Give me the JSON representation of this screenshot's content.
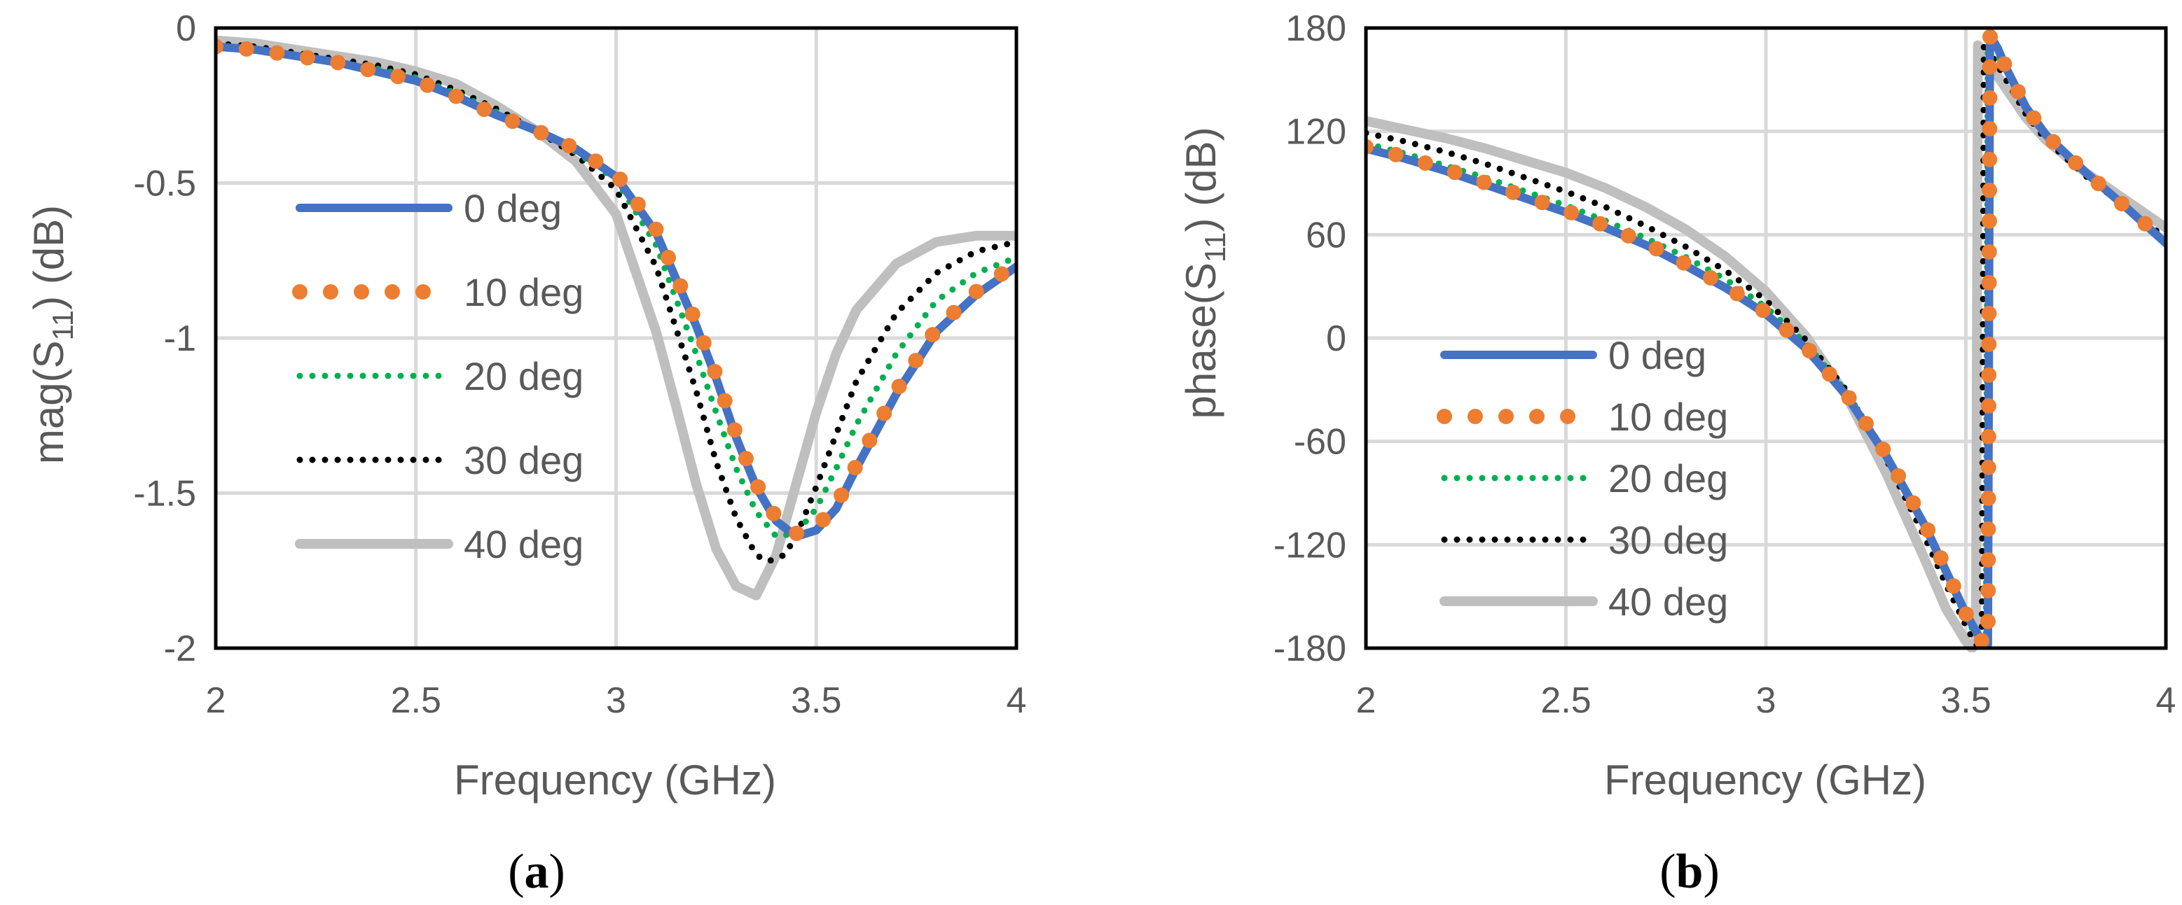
{
  "colors": {
    "s0": "#4472C4",
    "s1": "#ED7D31",
    "s2": "#00B050",
    "s3": "#000000",
    "s4": "#BFBFBF",
    "grid": "#D9D9D9",
    "frame": "#000000"
  },
  "chart_data": [
    {
      "type": "line",
      "panel": "a",
      "caption_open": "(",
      "caption_letter": "a",
      "caption_close": ")",
      "xlabel": "Frequency (GHz)",
      "ylabel_prefix": "mag(S",
      "ylabel_sub": "11",
      "ylabel_suffix": ") (dB)",
      "xlim": [
        2,
        4
      ],
      "ylim": [
        -2,
        0
      ],
      "xticks": [
        2,
        2.5,
        3,
        3.5,
        4
      ],
      "xtick_labels": [
        "2",
        "2.5",
        "3",
        "3.5",
        "4"
      ],
      "yticks": [
        0,
        -0.5,
        -1,
        -1.5,
        -2
      ],
      "ytick_labels": [
        "0",
        "-0.5",
        "-1",
        "-1.5",
        "-2"
      ],
      "legend": "center-left",
      "grid": true,
      "series": [
        {
          "name": "0 deg",
          "style": "solid",
          "x": [
            2.0,
            2.1,
            2.2,
            2.3,
            2.4,
            2.5,
            2.6,
            2.7,
            2.8,
            2.9,
            3.0,
            3.1,
            3.2,
            3.25,
            3.3,
            3.35,
            3.4,
            3.45,
            3.5,
            3.55,
            3.6,
            3.7,
            3.8,
            3.9,
            4.0
          ],
          "y": [
            -0.06,
            -0.07,
            -0.09,
            -0.11,
            -0.14,
            -0.17,
            -0.22,
            -0.28,
            -0.33,
            -0.39,
            -0.48,
            -0.66,
            -0.96,
            -1.13,
            -1.32,
            -1.48,
            -1.59,
            -1.64,
            -1.62,
            -1.55,
            -1.42,
            -1.18,
            -0.98,
            -0.86,
            -0.77
          ]
        },
        {
          "name": "10 deg",
          "style": "dot",
          "x": [
            2.0,
            2.1,
            2.2,
            2.3,
            2.4,
            2.5,
            2.6,
            2.7,
            2.8,
            2.9,
            3.0,
            3.1,
            3.2,
            3.25,
            3.3,
            3.35,
            3.4,
            3.45,
            3.5,
            3.55,
            3.6,
            3.7,
            3.8,
            3.9,
            4.0
          ],
          "y": [
            -0.06,
            -0.07,
            -0.09,
            -0.11,
            -0.14,
            -0.17,
            -0.22,
            -0.28,
            -0.33,
            -0.39,
            -0.47,
            -0.65,
            -0.95,
            -1.12,
            -1.31,
            -1.47,
            -1.58,
            -1.63,
            -1.61,
            -1.54,
            -1.41,
            -1.17,
            -0.97,
            -0.85,
            -0.76
          ]
        },
        {
          "name": "20 deg",
          "style": "dot-small",
          "x": [
            2.0,
            2.1,
            2.2,
            2.3,
            2.4,
            2.5,
            2.6,
            2.7,
            2.8,
            2.9,
            3.0,
            3.1,
            3.2,
            3.25,
            3.3,
            3.35,
            3.4,
            3.45,
            3.5,
            3.55,
            3.6,
            3.7,
            3.8,
            3.9,
            4.0
          ],
          "y": [
            -0.06,
            -0.07,
            -0.09,
            -0.11,
            -0.13,
            -0.16,
            -0.21,
            -0.27,
            -0.33,
            -0.4,
            -0.49,
            -0.7,
            -1.05,
            -1.24,
            -1.42,
            -1.56,
            -1.64,
            -1.63,
            -1.55,
            -1.42,
            -1.28,
            -1.05,
            -0.88,
            -0.79,
            -0.74
          ]
        },
        {
          "name": "30 deg",
          "style": "dot-small",
          "x": [
            2.0,
            2.1,
            2.2,
            2.3,
            2.4,
            2.5,
            2.6,
            2.7,
            2.8,
            2.9,
            3.0,
            3.1,
            3.2,
            3.25,
            3.3,
            3.35,
            3.38,
            3.42,
            3.45,
            3.5,
            3.55,
            3.6,
            3.7,
            3.8,
            3.9,
            4.0
          ],
          "y": [
            -0.05,
            -0.06,
            -0.08,
            -0.1,
            -0.12,
            -0.15,
            -0.2,
            -0.26,
            -0.33,
            -0.41,
            -0.52,
            -0.77,
            -1.17,
            -1.4,
            -1.58,
            -1.7,
            -1.72,
            -1.7,
            -1.64,
            -1.48,
            -1.31,
            -1.14,
            -0.92,
            -0.79,
            -0.72,
            -0.69
          ]
        },
        {
          "name": "40 deg",
          "style": "solid",
          "x": [
            2.0,
            2.1,
            2.2,
            2.3,
            2.4,
            2.5,
            2.6,
            2.7,
            2.8,
            2.9,
            3.0,
            3.1,
            3.15,
            3.2,
            3.25,
            3.3,
            3.35,
            3.4,
            3.45,
            3.5,
            3.55,
            3.6,
            3.7,
            3.8,
            3.9,
            4.0
          ],
          "y": [
            -0.04,
            -0.05,
            -0.07,
            -0.09,
            -0.11,
            -0.14,
            -0.18,
            -0.25,
            -0.33,
            -0.43,
            -0.6,
            -0.98,
            -1.22,
            -1.47,
            -1.68,
            -1.8,
            -1.83,
            -1.7,
            -1.47,
            -1.24,
            -1.05,
            -0.91,
            -0.76,
            -0.69,
            -0.67,
            -0.67
          ]
        }
      ]
    },
    {
      "type": "line",
      "panel": "b",
      "caption_open": "(",
      "caption_letter": "b",
      "caption_close": ")",
      "xlabel": "Frequency (GHz)",
      "ylabel_prefix": "phase(S",
      "ylabel_sub": "11",
      "ylabel_suffix": ") (dB)",
      "xlim": [
        2,
        4
      ],
      "ylim": [
        -180,
        180
      ],
      "xticks": [
        2,
        2.5,
        3,
        3.5,
        4
      ],
      "xtick_labels": [
        "2",
        "2.5",
        "3",
        "3.5",
        "4"
      ],
      "yticks": [
        180,
        120,
        60,
        0,
        -60,
        -120,
        -180
      ],
      "ytick_labels": [
        "180",
        "120",
        "60",
        "0",
        "-60",
        "-120",
        "-180"
      ],
      "legend": "center-left",
      "grid": true,
      "series": [
        {
          "name": "0 deg",
          "style": "solid",
          "x": [
            2.0,
            2.1,
            2.2,
            2.3,
            2.4,
            2.5,
            2.6,
            2.7,
            2.8,
            2.9,
            3.0,
            3.1,
            3.2,
            3.3,
            3.4,
            3.45,
            3.5,
            3.54,
            3.555,
            3.56,
            3.58,
            3.6,
            3.65,
            3.7,
            3.8,
            3.9,
            4.0
          ],
          "y": [
            110,
            104,
            97,
            89,
            81,
            73,
            64,
            54,
            42,
            29,
            14,
            -6,
            -33,
            -68,
            -110,
            -135,
            -160,
            -176,
            -178,
            176,
            168,
            157,
            134,
            118,
            96,
            76,
            55
          ]
        },
        {
          "name": "10 deg",
          "style": "dot",
          "x": [
            2.0,
            2.1,
            2.2,
            2.3,
            2.4,
            2.5,
            2.6,
            2.7,
            2.8,
            2.9,
            3.0,
            3.1,
            3.2,
            3.3,
            3.4,
            3.45,
            3.5,
            3.54,
            3.555,
            3.56,
            3.58,
            3.6,
            3.65,
            3.7,
            3.8,
            3.9,
            4.0
          ],
          "y": [
            111,
            105,
            98,
            90,
            82,
            74,
            65,
            55,
            43,
            30,
            15,
            -5,
            -32,
            -67,
            -109,
            -134,
            -160,
            -176,
            -178,
            175,
            168,
            157,
            134,
            118,
            96,
            76,
            56
          ]
        },
        {
          "name": "20 deg",
          "style": "dot-small",
          "x": [
            2.0,
            2.1,
            2.2,
            2.3,
            2.4,
            2.5,
            2.6,
            2.7,
            2.8,
            2.9,
            3.0,
            3.1,
            3.2,
            3.3,
            3.4,
            3.45,
            3.5,
            3.535,
            3.55,
            3.555,
            3.57,
            3.6,
            3.65,
            3.7,
            3.8,
            3.9,
            4.0
          ],
          "y": [
            113,
            107,
            100,
            93,
            85,
            77,
            68,
            58,
            47,
            34,
            18,
            -3,
            -31,
            -67,
            -111,
            -137,
            -162,
            -177,
            -179,
            174,
            168,
            155,
            133,
            117,
            95,
            75,
            56
          ]
        },
        {
          "name": "30 deg",
          "style": "dot-small",
          "x": [
            2.0,
            2.1,
            2.2,
            2.3,
            2.4,
            2.5,
            2.6,
            2.7,
            2.8,
            2.9,
            3.0,
            3.1,
            3.2,
            3.3,
            3.4,
            3.45,
            3.5,
            3.525,
            3.54,
            3.545,
            3.56,
            3.6,
            3.65,
            3.7,
            3.8,
            3.9,
            4.0
          ],
          "y": [
            119,
            114,
            108,
            101,
            93,
            85,
            76,
            65,
            53,
            39,
            22,
            -1,
            -30,
            -70,
            -117,
            -143,
            -167,
            -178,
            -179,
            172,
            166,
            150,
            130,
            115,
            94,
            76,
            58
          ]
        },
        {
          "name": "40 deg",
          "style": "solid",
          "x": [
            2.0,
            2.1,
            2.2,
            2.3,
            2.4,
            2.5,
            2.6,
            2.7,
            2.8,
            2.9,
            3.0,
            3.1,
            3.2,
            3.3,
            3.4,
            3.45,
            3.5,
            3.515,
            3.525,
            3.53,
            3.55,
            3.6,
            3.65,
            3.7,
            3.8,
            3.9,
            4.0
          ],
          "y": [
            126,
            121,
            116,
            110,
            103,
            96,
            87,
            76,
            63,
            47,
            27,
            1,
            -33,
            -78,
            -130,
            -157,
            -176,
            -180,
            -178,
            170,
            162,
            145,
            128,
            115,
            96,
            80,
            64
          ]
        }
      ]
    }
  ]
}
